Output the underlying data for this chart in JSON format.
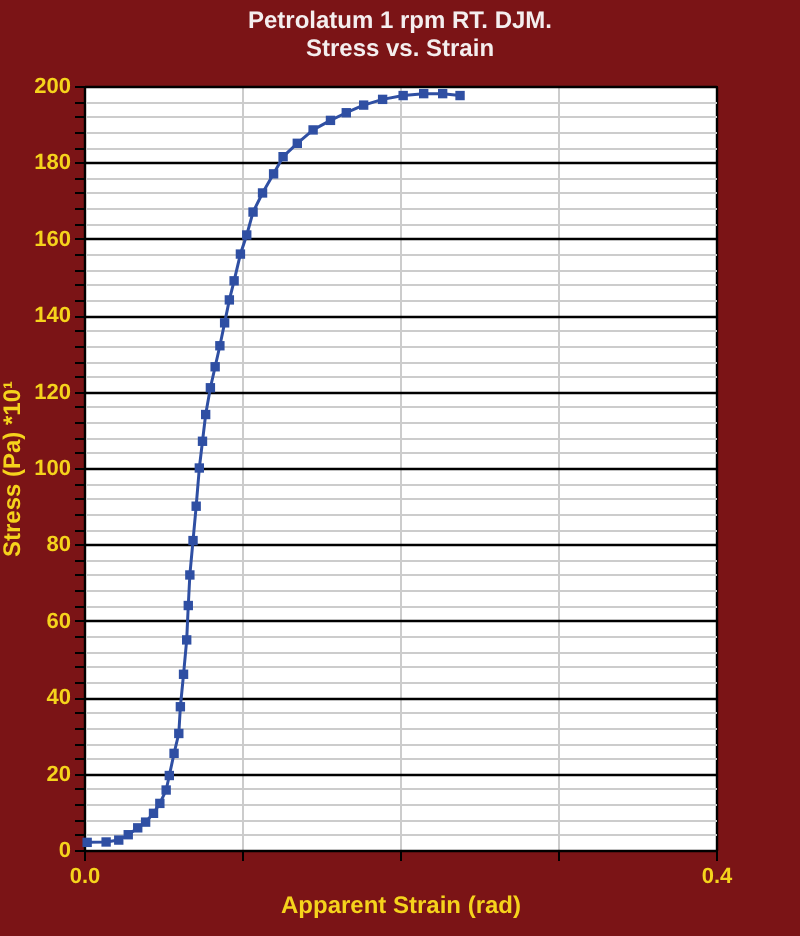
{
  "chart_data": {
    "type": "line",
    "title": "Petrolatum 1 rpm RT. DJM.",
    "subtitle": "Stress vs. Strain",
    "xlabel": "Apparent Strain (rad)",
    "ylabel": "Stress (Pa) *10¹",
    "x": [
      0.002,
      0.014,
      0.022,
      0.028,
      0.034,
      0.039,
      0.044,
      0.048,
      0.052,
      0.054,
      0.057,
      0.06,
      0.061,
      0.063,
      0.065,
      0.066,
      0.067,
      0.069,
      0.071,
      0.073,
      0.075,
      0.077,
      0.08,
      0.083,
      0.086,
      0.089,
      0.092,
      0.095,
      0.099,
      0.103,
      0.107,
      0.113,
      0.12,
      0.126,
      0.135,
      0.145,
      0.156,
      0.166,
      0.177,
      0.189,
      0.202,
      0.215,
      0.227,
      0.238
    ],
    "series": [
      {
        "color": "#2f4fa3",
        "values": [
          2,
          2.1,
          2.6,
          4,
          5.8,
          7.3,
          9.6,
          12.2,
          15.7,
          19.5,
          25.3,
          30.5,
          37.5,
          46,
          55,
          64,
          72,
          81,
          90,
          100,
          107,
          114,
          121,
          126.5,
          132,
          138,
          144,
          149,
          156,
          161,
          167,
          172,
          177,
          181.5,
          185,
          188.5,
          191,
          193,
          195,
          196.5,
          197.5,
          198,
          198,
          197.5
        ]
      }
    ],
    "xlim": [
      0,
      0.4
    ],
    "ylim": [
      0,
      200
    ],
    "xticks": [
      {
        "value": 0,
        "label": "0.0"
      },
      {
        "value": 0.1,
        "label": null
      },
      {
        "value": 0.2,
        "label": null
      },
      {
        "value": 0.3,
        "label": null
      },
      {
        "value": 0.4,
        "label": "0.4"
      }
    ],
    "yticks": [
      0,
      {
        "value": 4,
        "label": null
      },
      {
        "value": 8,
        "label": null
      },
      {
        "value": 12,
        "label": null
      },
      {
        "value": 16,
        "label": null
      },
      20,
      {
        "value": 24,
        "label": null
      },
      {
        "value": 28,
        "label": null
      },
      {
        "value": 32,
        "label": null
      },
      {
        "value": 36,
        "label": null
      },
      40,
      {
        "value": 44,
        "label": null
      },
      {
        "value": 48,
        "label": null
      },
      {
        "value": 52,
        "label": null
      },
      {
        "value": 56,
        "label": null
      },
      60,
      {
        "value": 64,
        "label": null
      },
      {
        "value": 68,
        "label": null
      },
      {
        "value": 72,
        "label": null
      },
      {
        "value": 76,
        "label": null
      },
      80,
      {
        "value": 84,
        "label": null
      },
      {
        "value": 88,
        "label": null
      },
      {
        "value": 92,
        "label": null
      },
      {
        "value": 96,
        "label": null
      },
      100,
      {
        "value": 104,
        "label": null
      },
      {
        "value": 108,
        "label": null
      },
      {
        "value": 112,
        "label": null
      },
      {
        "value": 116,
        "label": null
      },
      120,
      {
        "value": 124,
        "label": null
      },
      {
        "value": 128,
        "label": null
      },
      {
        "value": 132,
        "label": null
      },
      {
        "value": 136,
        "label": null
      },
      140,
      {
        "value": 144,
        "label": null
      },
      {
        "value": 148,
        "label": null
      },
      {
        "value": 152,
        "label": null
      },
      {
        "value": 156,
        "label": null
      },
      160,
      {
        "value": 164,
        "label": null
      },
      {
        "value": 168,
        "label": null
      },
      {
        "value": 172,
        "label": null
      },
      {
        "value": 176,
        "label": null
      },
      180,
      {
        "value": 184,
        "label": null
      },
      {
        "value": 188,
        "label": null
      },
      {
        "value": 192,
        "label": null
      },
      {
        "value": 196,
        "label": null
      },
      200
    ],
    "grid": true,
    "marker": "square",
    "line_style": "solid"
  }
}
